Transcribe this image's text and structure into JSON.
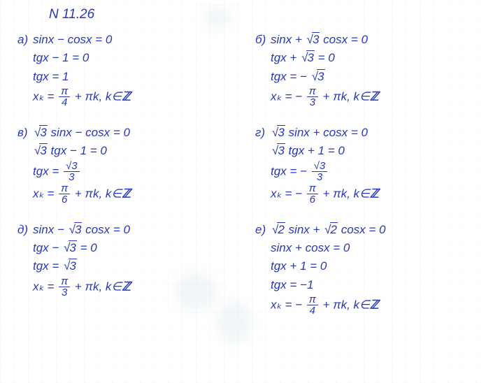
{
  "title": "N 11.26",
  "ink_color": "#2838b8",
  "layout": {
    "cols": 2,
    "problems_per_col": 3
  },
  "left": [
    {
      "label": "а)",
      "lines": [
        [
          {
            "t": "text",
            "v": "sinx − cosx = 0"
          }
        ],
        [
          {
            "t": "text",
            "v": "tgx − 1 = 0"
          }
        ],
        [
          {
            "t": "text",
            "v": "tgx = 1"
          }
        ],
        [
          {
            "t": "text",
            "v": "xₖ = "
          },
          {
            "t": "frac",
            "num": "π",
            "den": "4"
          },
          {
            "t": "text",
            "v": " + πk, k∈"
          },
          {
            "t": "zz",
            "v": "ℤ"
          }
        ]
      ]
    },
    {
      "label": "в)",
      "lines": [
        [
          {
            "t": "sqrt",
            "v": "3"
          },
          {
            "t": "text",
            "v": " sinx − cosx = 0"
          }
        ],
        [
          {
            "t": "sqrt",
            "v": "3"
          },
          {
            "t": "text",
            "v": " tgx − 1 = 0"
          }
        ],
        [
          {
            "t": "text",
            "v": "tgx = "
          },
          {
            "t": "frac",
            "num": "√3",
            "den": "3"
          }
        ],
        [
          {
            "t": "text",
            "v": "xₖ = "
          },
          {
            "t": "frac",
            "num": "π",
            "den": "6"
          },
          {
            "t": "text",
            "v": " + πk, k∈"
          },
          {
            "t": "zz",
            "v": "ℤ"
          }
        ]
      ]
    },
    {
      "label": "д)",
      "lines": [
        [
          {
            "t": "text",
            "v": "sinx − "
          },
          {
            "t": "sqrt",
            "v": "3"
          },
          {
            "t": "text",
            "v": " cosx = 0"
          }
        ],
        [
          {
            "t": "text",
            "v": "tgx − "
          },
          {
            "t": "sqrt",
            "v": "3"
          },
          {
            "t": "text",
            "v": " = 0"
          }
        ],
        [
          {
            "t": "text",
            "v": "tgx = "
          },
          {
            "t": "sqrt",
            "v": "3"
          }
        ],
        [
          {
            "t": "text",
            "v": "xₖ = "
          },
          {
            "t": "frac",
            "num": "π",
            "den": "3"
          },
          {
            "t": "text",
            "v": " + πk, k∈"
          },
          {
            "t": "zz",
            "v": "ℤ"
          }
        ]
      ]
    }
  ],
  "right": [
    {
      "label": "б)",
      "lines": [
        [
          {
            "t": "text",
            "v": "sinx + "
          },
          {
            "t": "sqrt",
            "v": "3"
          },
          {
            "t": "text",
            "v": " cosx = 0"
          }
        ],
        [
          {
            "t": "text",
            "v": "tgx + "
          },
          {
            "t": "sqrt",
            "v": "3"
          },
          {
            "t": "text",
            "v": " = 0"
          }
        ],
        [
          {
            "t": "text",
            "v": "tgx = − "
          },
          {
            "t": "sqrt",
            "v": "3"
          }
        ],
        [
          {
            "t": "text",
            "v": "xₖ = − "
          },
          {
            "t": "frac",
            "num": "π",
            "den": "3"
          },
          {
            "t": "text",
            "v": " + πk, k∈"
          },
          {
            "t": "zz",
            "v": "ℤ"
          }
        ]
      ]
    },
    {
      "label": "г)",
      "lines": [
        [
          {
            "t": "sqrt",
            "v": "3"
          },
          {
            "t": "text",
            "v": " sinx + cosx = 0"
          }
        ],
        [
          {
            "t": "sqrt",
            "v": "3"
          },
          {
            "t": "text",
            "v": " tgx + 1 = 0"
          }
        ],
        [
          {
            "t": "text",
            "v": "tgx = − "
          },
          {
            "t": "frac",
            "num": "√3",
            "den": "3"
          }
        ],
        [
          {
            "t": "text",
            "v": "xₖ = − "
          },
          {
            "t": "frac",
            "num": "π",
            "den": "6"
          },
          {
            "t": "text",
            "v": " + πk, k∈"
          },
          {
            "t": "zz",
            "v": "ℤ"
          }
        ]
      ]
    },
    {
      "label": "е)",
      "lines": [
        [
          {
            "t": "sqrt",
            "v": "2"
          },
          {
            "t": "text",
            "v": " sinx + "
          },
          {
            "t": "sqrt",
            "v": "2"
          },
          {
            "t": "text",
            "v": " cosx = 0"
          }
        ],
        [
          {
            "t": "text",
            "v": "sinx + cosx = 0"
          }
        ],
        [
          {
            "t": "text",
            "v": "tgx + 1 = 0"
          }
        ],
        [
          {
            "t": "text",
            "v": "tgx = −1"
          }
        ],
        [
          {
            "t": "text",
            "v": "xₖ = − "
          },
          {
            "t": "frac",
            "num": "π",
            "den": "4"
          },
          {
            "t": "text",
            "v": " + πk, k∈"
          },
          {
            "t": "zz",
            "v": "ℤ"
          }
        ]
      ]
    }
  ]
}
